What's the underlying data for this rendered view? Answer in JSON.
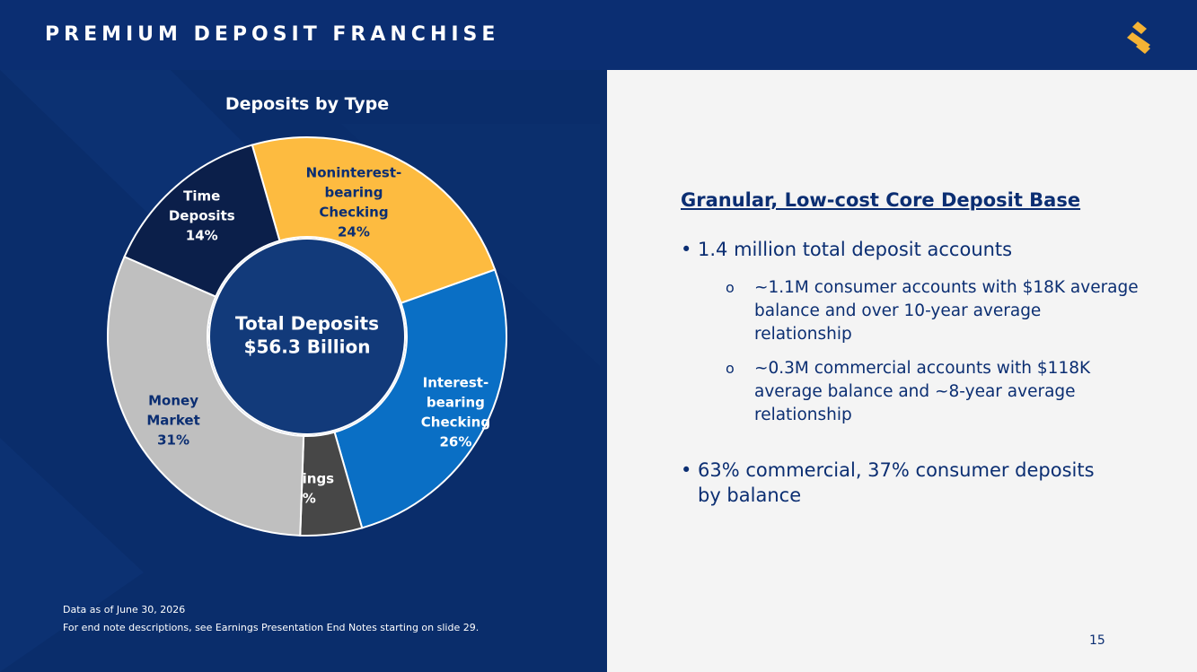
{
  "header": {
    "title": "PREMIUM DEPOSIT FRANCHISE"
  },
  "colors": {
    "navy": "#0b2e72",
    "background": "#0a2d6b",
    "panel": "#f4f4f4"
  },
  "logo": {
    "icon": "s-mark-logo-icon",
    "color": "#f5b335"
  },
  "chart_data": {
    "type": "pie",
    "donut": true,
    "title": "Deposits by Type",
    "center_label": [
      "Total Deposits",
      "$56.3 Billion"
    ],
    "slices": [
      {
        "name": "Noninterest-bearing Checking",
        "label_lines": [
          "Noninterest-",
          "bearing",
          "Checking"
        ],
        "pct_label": "24%",
        "value": 24,
        "color": "#fdbb40",
        "text_color": "#0b2e72"
      },
      {
        "name": "Interest-bearing Checking",
        "label_lines": [
          "Interest-",
          "bearing",
          "Checking"
        ],
        "pct_label": "26%",
        "value": 26,
        "color": "#0a6fc5",
        "text_color": "#ffffff"
      },
      {
        "name": "Savings",
        "label_lines": [
          "Savings"
        ],
        "pct_label": "5%",
        "value": 5,
        "color": "#474747",
        "text_color": "#ffffff"
      },
      {
        "name": "Money Market",
        "label_lines": [
          "Money",
          "Market"
        ],
        "pct_label": "31%",
        "value": 31,
        "color": "#bfbfbf",
        "text_color": "#0b2e72"
      },
      {
        "name": "Time Deposits",
        "label_lines": [
          "Time",
          "Deposits"
        ],
        "pct_label": "14%",
        "value": 14,
        "color": "#0b1f4a",
        "text_color": "#ffffff"
      }
    ]
  },
  "footnotes": [
    "Data as of June 30, 2026",
    "For end note descriptions, see Earnings Presentation End Notes starting on slide 29."
  ],
  "right_panel": {
    "heading": "Granular, Low-cost Core Deposit Base",
    "bullets": [
      {
        "text": "1.4 million total deposit accounts",
        "subbullets": [
          "~1.1M consumer accounts with $18K average balance and over 10-year average relationship",
          "~0.3M commercial accounts with $118K average balance and ~8-year average relationship"
        ]
      },
      {
        "text": "63% commercial, 37% consumer deposits by balance"
      }
    ],
    "bullet_mark": "•",
    "sub_mark": "o"
  },
  "page_number": "15"
}
